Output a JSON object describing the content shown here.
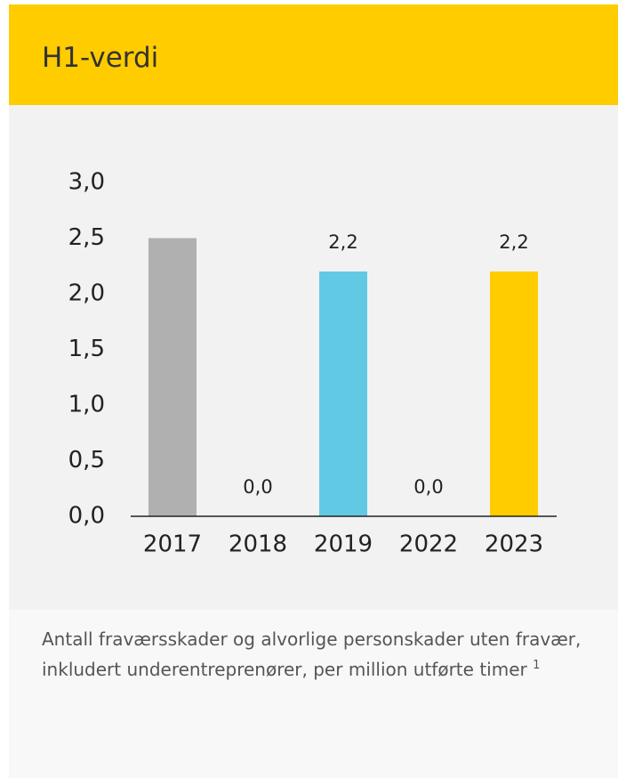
{
  "chart_data": {
    "type": "bar",
    "title": "H1-verdi",
    "categories": [
      "2017",
      "2018",
      "2019",
      "2022",
      "2023"
    ],
    "values": [
      2.5,
      0,
      2.2,
      0,
      2.2
    ],
    "value_labels": [
      null,
      "0,0",
      "2,2",
      "0,0",
      "2,2"
    ],
    "colors": [
      "#b0b0b0",
      "#b0b0b0",
      "#62c9e5",
      "#62c9e5",
      "#ffcc00"
    ],
    "ylim": [
      0,
      3
    ],
    "yticks": [
      {
        "value": 0,
        "label": "0,0"
      },
      {
        "value": 0.5,
        "label": "0,5"
      },
      {
        "value": 1,
        "label": "1,0"
      },
      {
        "value": 1.5,
        "label": "1,5"
      },
      {
        "value": 2,
        "label": "2,0"
      },
      {
        "value": 2.5,
        "label": "2,5"
      },
      {
        "value": 3,
        "label": "3,0"
      }
    ],
    "footnote": "Antall fraværsskader og alvorlige personskader uten fravær, inkludert underentreprenører, per million utførte timer",
    "footnote_ref": "1"
  }
}
